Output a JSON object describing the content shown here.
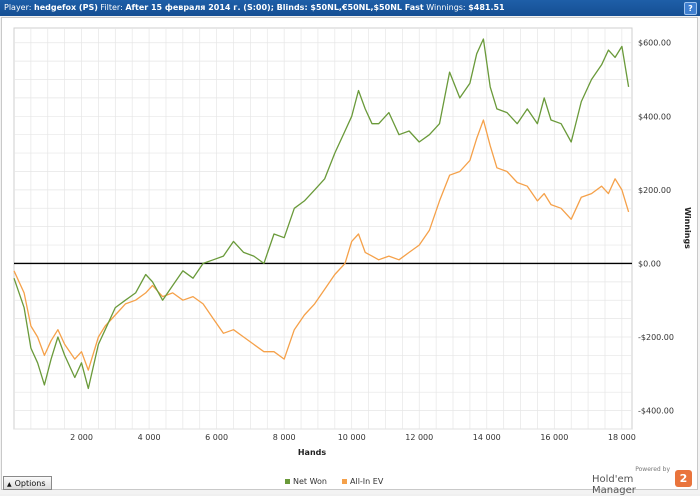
{
  "titlebar": {
    "player_label": "Player:",
    "player_value": "hedgefox (PS)",
    "filter_label": "Filter:",
    "filter_value": "After 15 февраля 2014 г. (S:00); Blinds: $50NL,€50NL,$50NL Fast",
    "winnings_label": "Winnings:",
    "winnings_value": "$481.51",
    "help_label": "?"
  },
  "options_button": {
    "label": "Options",
    "arrow": "▲"
  },
  "branding": {
    "powered_by": "Powered by",
    "name": "Hold'em Manager",
    "logo": "2"
  },
  "chart_data": {
    "type": "line",
    "title": "",
    "xlabel": "Hands",
    "ylabel": "Winnings",
    "xlim": [
      0,
      18300
    ],
    "ylim": [
      -450,
      640
    ],
    "x_ticks": [
      2000,
      4000,
      6000,
      8000,
      10000,
      12000,
      14000,
      16000,
      18000
    ],
    "x_tick_labels": [
      "2 000",
      "4 000",
      "6 000",
      "8 000",
      "10 000",
      "12 000",
      "14 000",
      "16 000",
      "18 000"
    ],
    "y_ticks": [
      600,
      400,
      200,
      0,
      -200,
      -400
    ],
    "y_tick_labels": [
      "$600.00",
      "$400.00",
      "$200.00",
      "$0.00",
      "-$200.00",
      "-$400.00"
    ],
    "grid": true,
    "legend_position": "bottom",
    "zero_line_color": "#000000",
    "series": [
      {
        "name": "Net Won",
        "color": "#6a9a3a",
        "x": [
          0,
          300,
          500,
          700,
          900,
          1100,
          1300,
          1500,
          1800,
          2000,
          2200,
          2500,
          2700,
          3000,
          3300,
          3600,
          3900,
          4100,
          4400,
          4700,
          5000,
          5300,
          5600,
          5900,
          6200,
          6500,
          6800,
          7100,
          7400,
          7700,
          8000,
          8300,
          8600,
          8900,
          9200,
          9500,
          9800,
          10000,
          10200,
          10400,
          10600,
          10800,
          11100,
          11400,
          11700,
          12000,
          12300,
          12600,
          12900,
          13200,
          13500,
          13700,
          13900,
          14100,
          14300,
          14600,
          14900,
          15200,
          15500,
          15700,
          15900,
          16200,
          16500,
          16800,
          17100,
          17400,
          17600,
          17800,
          18000,
          18200
        ],
        "y": [
          -40,
          -120,
          -230,
          -270,
          -330,
          -260,
          -200,
          -250,
          -310,
          -270,
          -340,
          -220,
          -180,
          -120,
          -100,
          -80,
          -30,
          -50,
          -100,
          -60,
          -20,
          -40,
          0,
          10,
          20,
          60,
          30,
          20,
          0,
          80,
          70,
          150,
          170,
          200,
          230,
          300,
          360,
          400,
          470,
          420,
          380,
          380,
          410,
          350,
          360,
          330,
          350,
          380,
          520,
          450,
          490,
          570,
          610,
          480,
          420,
          410,
          380,
          420,
          380,
          450,
          390,
          380,
          330,
          440,
          500,
          540,
          580,
          560,
          590,
          480
        ]
      },
      {
        "name": "All-In EV",
        "color": "#f5a14a",
        "x": [
          0,
          300,
          500,
          700,
          900,
          1100,
          1300,
          1500,
          1800,
          2000,
          2200,
          2500,
          2700,
          3000,
          3300,
          3600,
          3900,
          4100,
          4400,
          4700,
          5000,
          5300,
          5600,
          5900,
          6200,
          6500,
          6800,
          7100,
          7400,
          7700,
          8000,
          8300,
          8600,
          8900,
          9200,
          9500,
          9800,
          10000,
          10200,
          10400,
          10600,
          10800,
          11100,
          11400,
          11700,
          12000,
          12300,
          12600,
          12900,
          13200,
          13500,
          13700,
          13900,
          14100,
          14300,
          14600,
          14900,
          15200,
          15500,
          15700,
          15900,
          16200,
          16500,
          16800,
          17100,
          17400,
          17600,
          17800,
          18000,
          18200
        ],
        "y": [
          -20,
          -80,
          -170,
          -200,
          -250,
          -210,
          -180,
          -220,
          -260,
          -240,
          -290,
          -200,
          -170,
          -140,
          -110,
          -100,
          -80,
          -60,
          -90,
          -80,
          -100,
          -90,
          -110,
          -150,
          -190,
          -180,
          -200,
          -220,
          -240,
          -240,
          -260,
          -180,
          -140,
          -110,
          -70,
          -30,
          0,
          60,
          80,
          30,
          20,
          10,
          20,
          10,
          30,
          50,
          90,
          170,
          240,
          250,
          280,
          340,
          390,
          320,
          260,
          250,
          220,
          210,
          170,
          190,
          160,
          150,
          120,
          180,
          190,
          210,
          190,
          230,
          200,
          140
        ]
      }
    ]
  }
}
